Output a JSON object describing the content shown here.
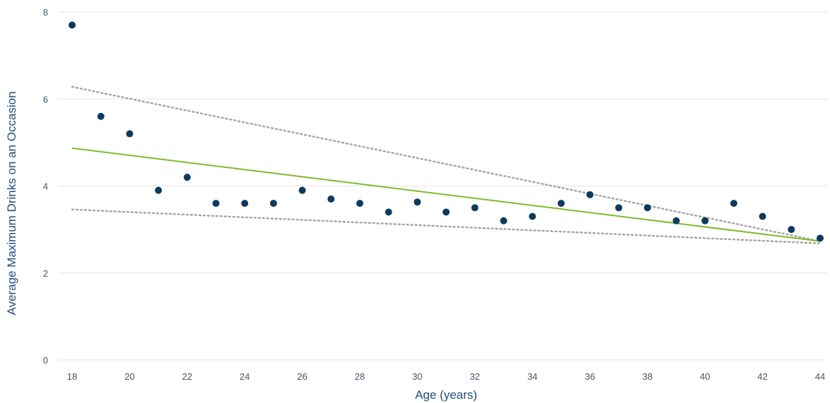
{
  "chart_data": {
    "type": "scatter",
    "title": "",
    "xlabel": "Age (years)",
    "ylabel": "Average Maximum Drinks on an Occasion",
    "xlim": [
      18,
      44
    ],
    "ylim": [
      0,
      8
    ],
    "x_ticks": [
      18,
      20,
      22,
      24,
      26,
      28,
      30,
      32,
      34,
      36,
      38,
      40,
      42,
      44
    ],
    "y_ticks": [
      0,
      2,
      4,
      6,
      8
    ],
    "grid": "horizontal",
    "legend": "none",
    "points": [
      {
        "x": 18,
        "y": 7.7
      },
      {
        "x": 19,
        "y": 5.6
      },
      {
        "x": 20,
        "y": 5.2
      },
      {
        "x": 21,
        "y": 3.9
      },
      {
        "x": 22,
        "y": 4.2
      },
      {
        "x": 23,
        "y": 3.6
      },
      {
        "x": 24,
        "y": 3.6
      },
      {
        "x": 25,
        "y": 3.6
      },
      {
        "x": 26,
        "y": 3.9
      },
      {
        "x": 27,
        "y": 3.7
      },
      {
        "x": 28,
        "y": 3.6
      },
      {
        "x": 29,
        "y": 3.4
      },
      {
        "x": 30,
        "y": 3.63
      },
      {
        "x": 31,
        "y": 3.4
      },
      {
        "x": 32,
        "y": 3.5
      },
      {
        "x": 33,
        "y": 3.2
      },
      {
        "x": 34,
        "y": 3.3
      },
      {
        "x": 35,
        "y": 3.6
      },
      {
        "x": 36,
        "y": 3.8
      },
      {
        "x": 37,
        "y": 3.5
      },
      {
        "x": 38,
        "y": 3.5
      },
      {
        "x": 39,
        "y": 3.2
      },
      {
        "x": 40,
        "y": 3.2
      },
      {
        "x": 41,
        "y": 3.6
      },
      {
        "x": 42,
        "y": 3.3
      },
      {
        "x": 43,
        "y": 3.0
      },
      {
        "x": 44,
        "y": 2.8
      }
    ],
    "trend_line": {
      "x": [
        18,
        44
      ],
      "y": [
        4.87,
        2.73
      ]
    },
    "confidence_upper": {
      "x": [
        18,
        44
      ],
      "y": [
        6.28,
        2.73
      ]
    },
    "confidence_lower": {
      "x": [
        18,
        44
      ],
      "y": [
        3.46,
        2.68
      ]
    },
    "colors": {
      "points": "#0e3a5f",
      "trend_line": "#7cbb2e",
      "confidence": "#a6a6a6",
      "axis_text": "#44546a",
      "axis_title": "#1f4e79"
    }
  }
}
